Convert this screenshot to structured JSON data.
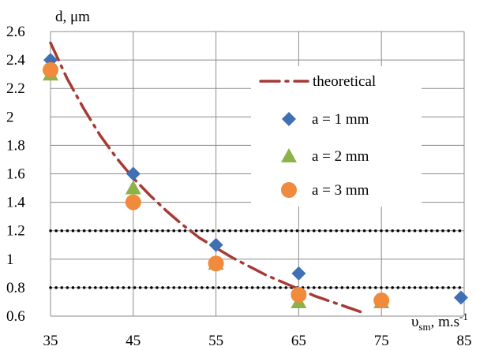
{
  "chart_data": {
    "type": "scatter",
    "ylabel": "d, μm",
    "xlabel": {
      "symbol": "υ",
      "subscript": "sm",
      "unit": ", m.s",
      "exponent": "-1"
    },
    "x_ticks": [
      "35",
      "45",
      "55",
      "65",
      "75",
      "85"
    ],
    "y_ticks": [
      "0.6",
      "0.8",
      "1",
      "1.2",
      "1.4",
      "1.6",
      "1.8",
      "2",
      "2.2",
      "2.4",
      "2.6"
    ],
    "xlim": [
      35,
      85
    ],
    "ylim": [
      0.6,
      2.6
    ],
    "grid": true,
    "legend_position": "upper-right",
    "series": [
      {
        "name": "theoretical",
        "kind": "line",
        "style": "dash-dot",
        "color": "#A63A35",
        "x": [
          35,
          37,
          39,
          41,
          43,
          45,
          47,
          49,
          51,
          53,
          55,
          57,
          59,
          61,
          63,
          65,
          67,
          69,
          71,
          73
        ],
        "y": [
          2.52,
          2.27,
          2.06,
          1.87,
          1.71,
          1.57,
          1.45,
          1.34,
          1.24,
          1.15,
          1.08,
          1.01,
          0.95,
          0.89,
          0.84,
          0.79,
          0.74,
          0.7,
          0.66,
          0.62
        ]
      },
      {
        "name": "a = 1 mm",
        "kind": "marker",
        "marker": "diamond",
        "color": "#3F6FB5",
        "x": [
          35,
          45,
          55,
          65,
          85
        ],
        "y": [
          2.4,
          1.6,
          1.1,
          0.9,
          0.73
        ]
      },
      {
        "name": "a = 2 mm",
        "kind": "marker",
        "marker": "triangle",
        "color": "#8CB34A",
        "x": [
          35,
          45,
          55,
          65,
          75
        ],
        "y": [
          2.3,
          1.5,
          0.97,
          0.7,
          0.7
        ]
      },
      {
        "name": "a = 3 mm",
        "kind": "marker",
        "marker": "circle",
        "color": "#F08A3C",
        "x": [
          35,
          45,
          55,
          65,
          75
        ],
        "y": [
          2.33,
          1.4,
          0.97,
          0.75,
          0.71
        ]
      }
    ],
    "reference_lines": [
      {
        "y": 1.2,
        "style": "dotted",
        "color": "#000000"
      },
      {
        "y": 0.8,
        "style": "dotted",
        "color": "#000000"
      }
    ]
  }
}
